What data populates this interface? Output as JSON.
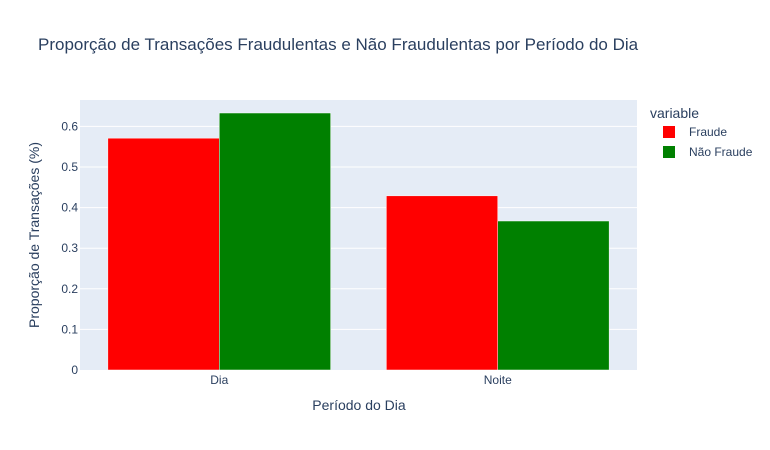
{
  "chart_data": {
    "type": "bar",
    "title": "Proporção de Transações Fraudulentas e Não Fraudulentas por Período do Dia",
    "xlabel": "Período do Dia",
    "ylabel": "Proporção de Transações (%)",
    "categories": [
      "Dia",
      "Noite"
    ],
    "series": [
      {
        "name": "Fraude",
        "color": "#ff0000",
        "values": [
          0.571,
          0.429
        ]
      },
      {
        "name": "Não Fraude",
        "color": "#008000",
        "values": [
          0.633,
          0.367
        ]
      }
    ],
    "ylim": [
      0,
      0.665
    ],
    "yticks": [
      0,
      0.1,
      0.2,
      0.3,
      0.4,
      0.5,
      0.6
    ],
    "ytick_labels": [
      "0",
      "0.1",
      "0.2",
      "0.3",
      "0.4",
      "0.5",
      "0.6"
    ],
    "grid": true,
    "plot_background": "#e5ecf6",
    "legend_title": "variable",
    "legend_position": "right"
  }
}
